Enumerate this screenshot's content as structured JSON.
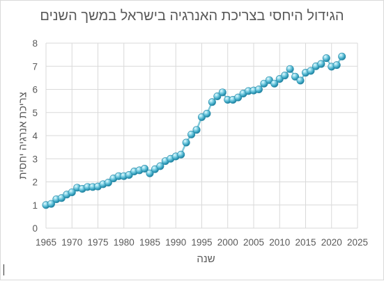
{
  "chart_data": {
    "type": "line",
    "title": "הגידול היחסי בצריכת האנרגיה בישראל במשך השנים",
    "xlabel": "שנה",
    "ylabel": "צריכת אנרגיה יחסית",
    "xlim": [
      1965,
      2025
    ],
    "ylim": [
      0,
      8
    ],
    "xticks": [
      1965,
      1970,
      1975,
      1980,
      1985,
      1990,
      1995,
      2000,
      2005,
      2010,
      2015,
      2020,
      2025
    ],
    "yticks": [
      0,
      1,
      2,
      3,
      4,
      5,
      6,
      7,
      8
    ],
    "grid": "vertical-and-horizontal",
    "legend": "none",
    "colors": {
      "line": "#7fc9d9",
      "marker": "#4fb3cc",
      "grid": "#d9d9d9"
    },
    "series": [
      {
        "x": [
          1965,
          1966,
          1967,
          1968,
          1969,
          1970,
          1971,
          1972,
          1973,
          1974,
          1975,
          1976,
          1977,
          1978,
          1979,
          1980,
          1981,
          1982,
          1983,
          1984,
          1985,
          1986,
          1987,
          1988,
          1989,
          1990,
          1991,
          1992,
          1993,
          1994,
          1995,
          1996,
          1997,
          1998,
          1999,
          2000,
          2001,
          2002,
          2003,
          2004,
          2005,
          2006,
          2007,
          2008,
          2009,
          2010,
          2011,
          2012,
          2013,
          2014,
          2015,
          2016,
          2017,
          2018,
          2019,
          2020,
          2021,
          2022
        ],
        "y": [
          1.0,
          1.05,
          1.25,
          1.3,
          1.45,
          1.55,
          1.75,
          1.7,
          1.78,
          1.78,
          1.8,
          1.9,
          1.97,
          2.15,
          2.25,
          2.25,
          2.3,
          2.45,
          2.5,
          2.57,
          2.37,
          2.55,
          2.68,
          2.9,
          3.0,
          3.1,
          3.18,
          3.7,
          4.05,
          4.25,
          4.8,
          4.95,
          5.45,
          5.7,
          5.87,
          5.55,
          5.55,
          5.65,
          5.82,
          5.93,
          5.95,
          6.0,
          6.25,
          6.4,
          6.25,
          6.45,
          6.6,
          6.88,
          6.55,
          6.38,
          6.72,
          6.8,
          7.0,
          7.1,
          7.35,
          6.98,
          7.05,
          7.42
        ]
      }
    ]
  }
}
